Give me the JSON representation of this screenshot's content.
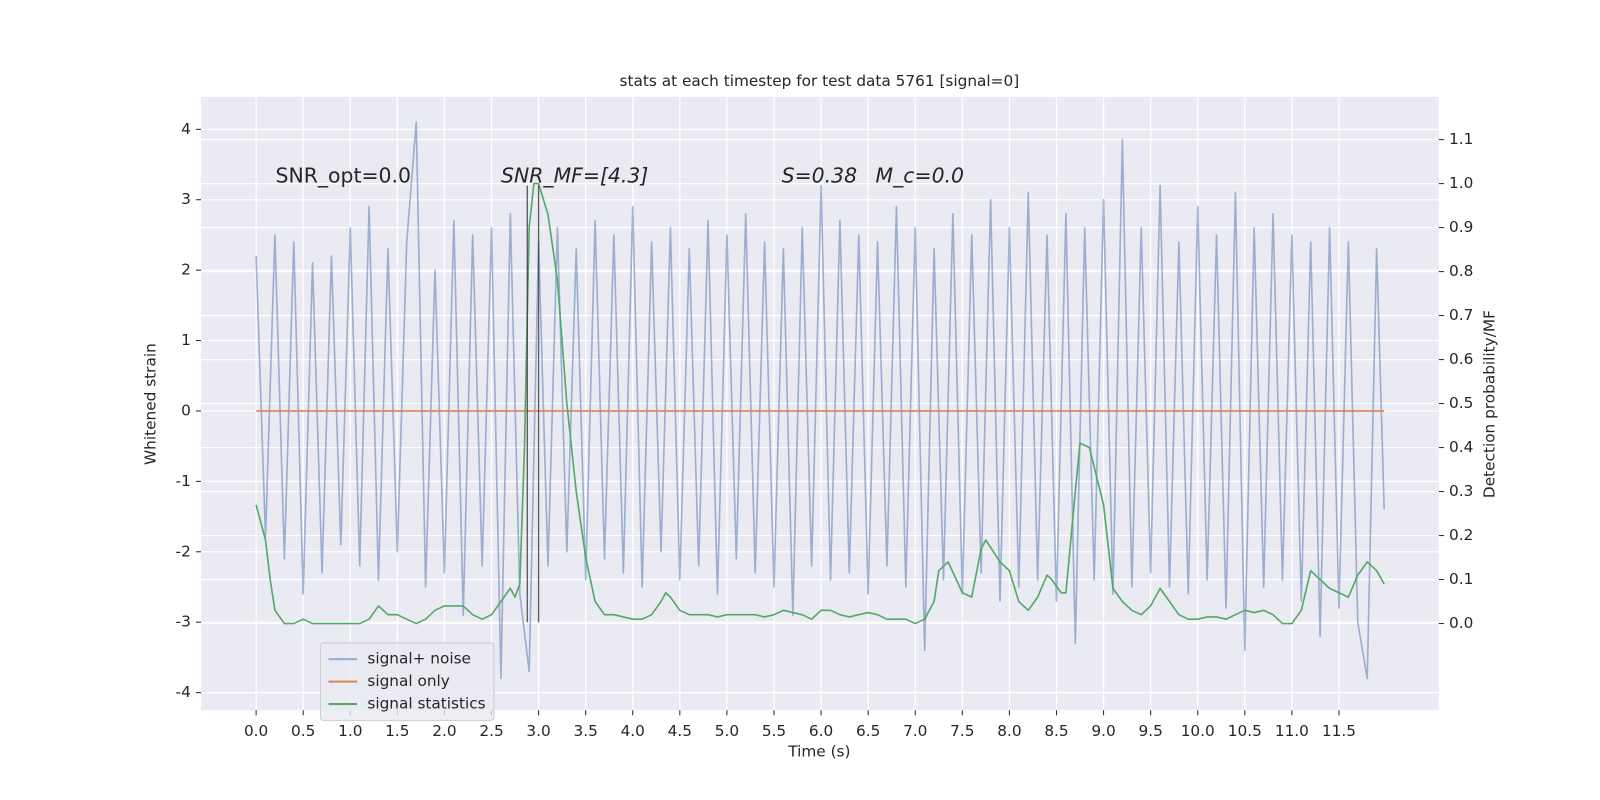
{
  "chart_data": {
    "type": "line",
    "title": "stats at each timestep for test data 5761 [signal=0]",
    "xlabel": "Time (s)",
    "ylabel": "Whitened strain",
    "y2label": "Detection probability/MF",
    "annotations": [
      "SNR_opt=0.0",
      "SNR_MF=[4.3]",
      "S=0.38",
      "M_c=0.0"
    ],
    "vlines": {
      "x": [
        2.88,
        3.0
      ],
      "ymin": -3,
      "ymax": 3.2,
      "color": "#333333"
    },
    "xlim": [
      -0.585,
      12.56
    ],
    "ylim": [
      -4.25,
      4.46
    ],
    "y2lim": [
      -0.197,
      1.197
    ],
    "xticks": [
      {
        "value": 0,
        "label": "0.0"
      },
      0.5,
      {
        "value": 1,
        "label": "1.0"
      },
      1.5,
      {
        "value": 2,
        "label": "2.0"
      },
      2.5,
      {
        "value": 3,
        "label": "3.0"
      },
      3.5,
      {
        "value": 4,
        "label": "4.0"
      },
      4.5,
      {
        "value": 5,
        "label": "5.0"
      },
      5.5,
      {
        "value": 6,
        "label": "6.0"
      },
      6.5,
      {
        "value": 7,
        "label": "7.0"
      },
      7.5,
      {
        "value": 8,
        "label": "8.0"
      },
      8.5,
      {
        "value": 9,
        "label": "9.0"
      },
      9.5,
      {
        "value": 10,
        "label": "10.0"
      },
      10.5,
      {
        "value": 11,
        "label": "11.0"
      },
      11.5
    ],
    "yticks": [
      -4,
      -3,
      -2,
      -1,
      0,
      1,
      2,
      3,
      4
    ],
    "y2ticks": [
      {
        "value": 0,
        "label": "0.0"
      },
      0.1,
      0.2,
      0.3,
      0.4,
      0.5,
      0.6,
      0.7,
      0.8,
      0.9,
      {
        "value": 1,
        "label": "1.0"
      },
      1.1
    ],
    "grid": true,
    "legend": "lower left",
    "series": [
      {
        "name": "signal+ noise",
        "color": "#4c72b0",
        "opacity": 0.5,
        "x": [
          0,
          0.1,
          0.2,
          0.3,
          0.4,
          0.5,
          0.6,
          0.7,
          0.8,
          0.9,
          1,
          1.1,
          1.2,
          1.3,
          1.4,
          1.5,
          1.6,
          1.7,
          1.8,
          1.9,
          2,
          2.1,
          2.2,
          2.3,
          2.4,
          2.5,
          2.6,
          2.7,
          2.8,
          2.9,
          3,
          3.1,
          3.2,
          3.3,
          3.4,
          3.5,
          3.6,
          3.7,
          3.8,
          3.9,
          4,
          4.1,
          4.2,
          4.3,
          4.4,
          4.5,
          4.6,
          4.7,
          4.8,
          4.9,
          5,
          5.1,
          5.2,
          5.3,
          5.4,
          5.5,
          5.6,
          5.7,
          5.8,
          5.9,
          6,
          6.1,
          6.2,
          6.3,
          6.4,
          6.5,
          6.6,
          6.7,
          6.8,
          6.9,
          7,
          7.1,
          7.2,
          7.3,
          7.4,
          7.5,
          7.6,
          7.7,
          7.8,
          7.9,
          8,
          8.1,
          8.2,
          8.3,
          8.4,
          8.5,
          8.6,
          8.7,
          8.8,
          8.9,
          9,
          9.1,
          9.2,
          9.3,
          9.4,
          9.5,
          9.6,
          9.7,
          9.8,
          9.9,
          10,
          10.1,
          10.2,
          10.3,
          10.4,
          10.5,
          10.6,
          10.7,
          10.8,
          10.9,
          11,
          11.1,
          11.2,
          11.3,
          11.4,
          11.5,
          11.6,
          11.7,
          11.8,
          11.9,
          11.98
        ],
        "values": [
          2.2,
          -1.8,
          2.5,
          -2.1,
          2.4,
          -2.6,
          2.1,
          -2.3,
          2.2,
          -1.9,
          2.6,
          -2.2,
          2.9,
          -2.4,
          2.3,
          -2.0,
          2.4,
          4.1,
          -2.5,
          2.0,
          -2.3,
          2.7,
          -2.9,
          2.5,
          -2.2,
          2.6,
          -3.8,
          2.8,
          -2.6,
          -3.7,
          2.4,
          -2.2,
          2.6,
          -2.0,
          2.3,
          -2.4,
          2.7,
          -2.1,
          2.5,
          -2.3,
          2.9,
          -2.5,
          2.4,
          -2.0,
          2.6,
          -2.4,
          2.3,
          -2.2,
          2.7,
          -2.6,
          2.5,
          -2.1,
          2.8,
          -2.3,
          2.4,
          -2.5,
          2.3,
          -2.9,
          2.6,
          -2.2,
          3.2,
          -2.4,
          2.7,
          -2.3,
          2.5,
          -2.6,
          2.4,
          -2.2,
          2.9,
          -2.5,
          2.6,
          -3.4,
          2.3,
          -2.4,
          2.8,
          -2.6,
          2.5,
          -2.3,
          3.0,
          -2.7,
          2.6,
          -2.5,
          3.1,
          -2.4,
          2.5,
          -2.7,
          2.8,
          -3.3,
          2.6,
          -2.4,
          3.0,
          -2.6,
          3.85,
          -2.5,
          2.6,
          -2.3,
          3.2,
          -2.5,
          2.4,
          -2.6,
          2.9,
          -2.4,
          2.5,
          -2.8,
          3.1,
          -3.4,
          2.6,
          -2.5,
          2.8,
          -2.4,
          2.5,
          -2.7,
          2.4,
          -3.2,
          2.6,
          -2.8,
          2.4,
          -3.0,
          -3.8,
          2.3,
          -1.4
        ]
      },
      {
        "name": "signal only",
        "color": "#dd8452",
        "x": [
          0,
          11.98
        ],
        "values": [
          0,
          0
        ]
      },
      {
        "name": "signal statistics",
        "color": "#55a868",
        "axis": "y2",
        "x": [
          0,
          0.1,
          0.15,
          0.2,
          0.3,
          0.4,
          0.5,
          0.6,
          0.7,
          0.8,
          0.9,
          1,
          1.1,
          1.2,
          1.3,
          1.4,
          1.5,
          1.6,
          1.7,
          1.8,
          1.9,
          2,
          2.1,
          2.2,
          2.3,
          2.4,
          2.5,
          2.6,
          2.7,
          2.75,
          2.8,
          2.85,
          2.9,
          2.95,
          3,
          3.1,
          3.2,
          3.3,
          3.4,
          3.5,
          3.6,
          3.7,
          3.8,
          3.9,
          4,
          4.1,
          4.2,
          4.3,
          4.35,
          4.4,
          4.5,
          4.6,
          4.7,
          4.8,
          4.9,
          5,
          5.1,
          5.2,
          5.3,
          5.4,
          5.5,
          5.6,
          5.7,
          5.8,
          5.9,
          6,
          6.1,
          6.2,
          6.3,
          6.4,
          6.5,
          6.6,
          6.7,
          6.8,
          6.9,
          7,
          7.1,
          7.2,
          7.25,
          7.35,
          7.5,
          7.6,
          7.7,
          7.75,
          7.9,
          8,
          8.1,
          8.2,
          8.3,
          8.4,
          8.45,
          8.55,
          8.6,
          8.7,
          8.75,
          8.85,
          9,
          9.1,
          9.2,
          9.3,
          9.4,
          9.5,
          9.6,
          9.7,
          9.8,
          9.9,
          10,
          10.1,
          10.2,
          10.3,
          10.4,
          10.5,
          10.6,
          10.7,
          10.8,
          10.9,
          11,
          11.1,
          11.2,
          11.3,
          11.4,
          11.5,
          11.6,
          11.7,
          11.8,
          11.9,
          11.98
        ],
        "values": [
          0.27,
          0.19,
          0.1,
          0.03,
          0.0,
          0.0,
          0.01,
          0.0,
          0.0,
          0.0,
          0.0,
          0.0,
          0.0,
          0.01,
          0.04,
          0.02,
          0.02,
          0.01,
          0.0,
          0.01,
          0.03,
          0.04,
          0.04,
          0.04,
          0.02,
          0.01,
          0.02,
          0.05,
          0.08,
          0.06,
          0.09,
          0.4,
          0.9,
          1.0,
          1.0,
          0.93,
          0.78,
          0.5,
          0.3,
          0.15,
          0.05,
          0.02,
          0.02,
          0.015,
          0.01,
          0.01,
          0.02,
          0.05,
          0.07,
          0.06,
          0.03,
          0.02,
          0.02,
          0.02,
          0.015,
          0.02,
          0.02,
          0.02,
          0.02,
          0.015,
          0.02,
          0.03,
          0.025,
          0.02,
          0.01,
          0.03,
          0.03,
          0.02,
          0.015,
          0.02,
          0.025,
          0.02,
          0.01,
          0.01,
          0.01,
          0.0,
          0.01,
          0.05,
          0.12,
          0.14,
          0.07,
          0.06,
          0.17,
          0.19,
          0.14,
          0.12,
          0.05,
          0.03,
          0.06,
          0.11,
          0.1,
          0.07,
          0.07,
          0.3,
          0.41,
          0.4,
          0.27,
          0.08,
          0.05,
          0.03,
          0.02,
          0.04,
          0.08,
          0.05,
          0.02,
          0.01,
          0.01,
          0.015,
          0.015,
          0.01,
          0.02,
          0.03,
          0.025,
          0.03,
          0.02,
          0.0,
          0.0,
          0.03,
          0.12,
          0.1,
          0.08,
          0.07,
          0.06,
          0.11,
          0.14,
          0.12,
          0.09
        ]
      }
    ]
  }
}
